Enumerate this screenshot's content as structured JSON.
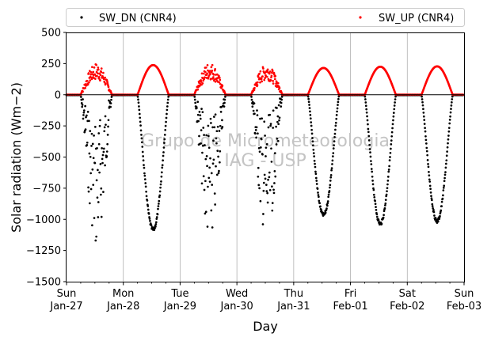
{
  "chart_data": {
    "type": "scatter",
    "title": "",
    "xlabel": "Day",
    "ylabel": "Solar radiation (Wm−2)",
    "ylim": [
      -1500,
      500
    ],
    "yticks": [
      500,
      250,
      0,
      -250,
      -500,
      -750,
      -1000,
      -1250,
      -1500
    ],
    "xlim": [
      0,
      7
    ],
    "xticks": [
      {
        "x": 0,
        "day": "Sun",
        "date": "Jan-27"
      },
      {
        "x": 1,
        "day": "Mon",
        "date": "Jan-28"
      },
      {
        "x": 2,
        "day": "Tue",
        "date": "Jan-29"
      },
      {
        "x": 3,
        "day": "Wed",
        "date": "Jan-30"
      },
      {
        "x": 4,
        "day": "Thu",
        "date": "Jan-31"
      },
      {
        "x": 5,
        "day": "Fri",
        "date": "Feb-01"
      },
      {
        "x": 6,
        "day": "Sat",
        "date": "Feb-02"
      },
      {
        "x": 7,
        "day": "Sun",
        "date": "Feb-03"
      }
    ],
    "grid": "vertical-daily",
    "zero_line": true,
    "legend_position": "top, above plot",
    "watermark": [
      "Grupo de Micrometeorologia",
      "IAG - USP"
    ],
    "series": [
      {
        "name": "SW_DN (CNR4)",
        "color": "#000000",
        "daily_peaks": [
          -1150,
          -1090,
          -1100,
          -1120,
          -970,
          -1040,
          -1020
        ]
      },
      {
        "name": "SW_UP (CNR4)",
        "color": "#ff0000",
        "daily_peaks": [
          240,
          238,
          245,
          235,
          215,
          225,
          228
        ]
      }
    ]
  }
}
